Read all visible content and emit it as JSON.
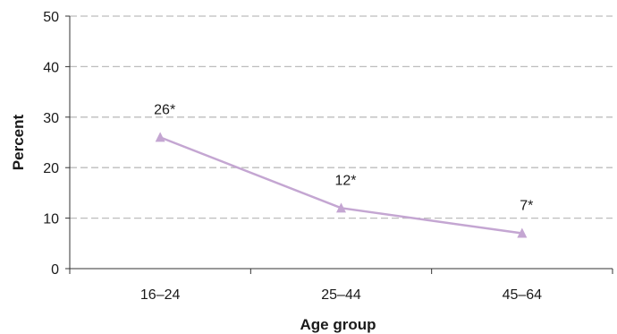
{
  "chart_data": {
    "type": "line",
    "categories": [
      "16–24",
      "25–44",
      "45–64"
    ],
    "series": [
      {
        "values": [
          26,
          12,
          7
        ],
        "labels": [
          "26*",
          "12*",
          "7*"
        ],
        "color": "#c4a6d2",
        "marker": "triangle"
      }
    ],
    "title": "",
    "xlabel": "Age group",
    "ylabel": "Percent",
    "ylim": [
      0,
      50
    ],
    "yticks": [
      0,
      10,
      20,
      30,
      40,
      50
    ],
    "grid": "horizontal-dashed",
    "legend": "none"
  }
}
